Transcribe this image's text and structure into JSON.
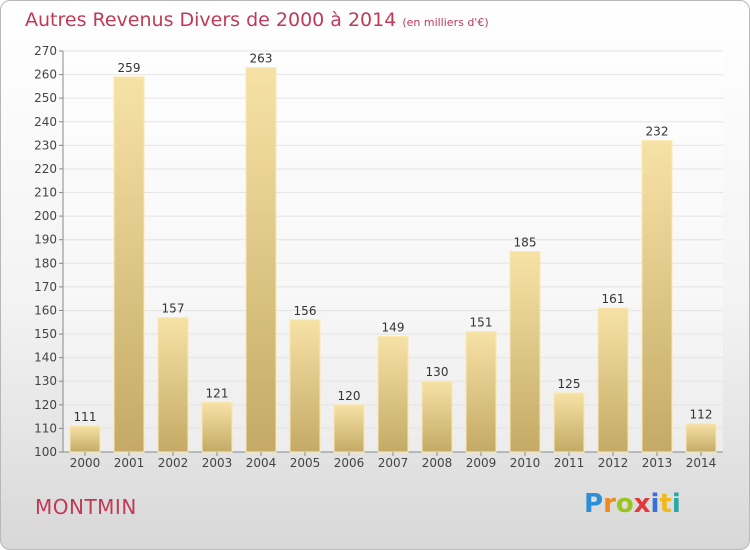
{
  "header": {
    "title": "Autres Revenus Divers de 2000 à 2014",
    "subtitle": "(en milliers d'€)"
  },
  "footer": {
    "place": "MONTMIN",
    "logo_text": "Proxiti"
  },
  "colors": {
    "title": "#c03a58",
    "bar_light": "#f7e2a6",
    "bar_dark": "#c4aa66",
    "grid": "#e4e4e4"
  },
  "chart_data": {
    "type": "bar",
    "title": "Autres Revenus Divers de 2000 à 2014",
    "subtitle": "(en milliers d'€)",
    "categories": [
      "2000",
      "2001",
      "2002",
      "2003",
      "2004",
      "2005",
      "2006",
      "2007",
      "2008",
      "2009",
      "2010",
      "2011",
      "2012",
      "2013",
      "2014"
    ],
    "values": [
      111,
      259,
      157,
      121,
      263,
      156,
      120,
      149,
      130,
      151,
      185,
      125,
      161,
      232,
      112
    ],
    "ylim": [
      100,
      270
    ],
    "ytick_step": 10,
    "grid": true,
    "data_labels": true,
    "xlabel": "",
    "ylabel": ""
  }
}
